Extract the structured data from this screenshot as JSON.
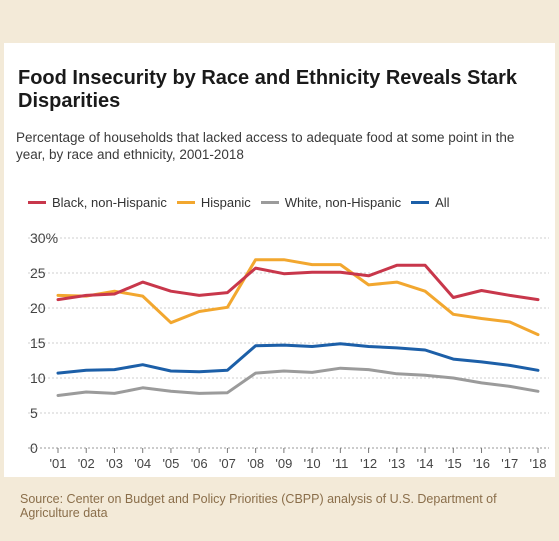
{
  "header": {
    "title": "Food Insecurity by Race and Ethnicity Reveals Stark Disparities",
    "subtitle": "Percentage of households that lacked access to adequate food at some point in the year, by race and ethnicity, 2001-2018"
  },
  "source_note": "Source: Center on Budget and Policy Priorities (CBPP) analysis of U.S. Department of Agriculture data",
  "chart_data": {
    "type": "line",
    "title": "Food Insecurity by Race and Ethnicity Reveals Stark Disparities",
    "subtitle": "Percentage of households that lacked access to adequate food at some point in the year, by race and ethnicity, 2001-2018",
    "x": [
      "'01",
      "'02",
      "'03",
      "'04",
      "'05",
      "'06",
      "'07",
      "'08",
      "'09",
      "'10",
      "'11",
      "'12",
      "'13",
      "'14",
      "'15",
      "'16",
      "'17",
      "'18"
    ],
    "ylim": [
      0,
      30
    ],
    "yticks": [
      "0",
      "5",
      "10",
      "15",
      "20",
      "25",
      "30%"
    ],
    "grid": true,
    "legend_position": "top",
    "series": [
      {
        "name": "Black, non-Hispanic",
        "color": "#c8374b",
        "values": [
          21.2,
          21.8,
          22.0,
          23.7,
          22.4,
          21.8,
          22.2,
          25.7,
          24.9,
          25.1,
          25.1,
          24.6,
          26.1,
          26.1,
          21.5,
          22.5,
          21.8,
          21.2
        ]
      },
      {
        "name": "Hispanic",
        "color": "#f2a72f",
        "values": [
          21.8,
          21.7,
          22.4,
          21.7,
          17.9,
          19.5,
          20.1,
          26.9,
          26.9,
          26.2,
          26.2,
          23.3,
          23.7,
          22.4,
          19.1,
          18.5,
          18.0,
          16.2
        ]
      },
      {
        "name": "White, non-Hispanic",
        "color": "#9b9b9b",
        "values": [
          7.5,
          8.0,
          7.8,
          8.6,
          8.1,
          7.8,
          7.9,
          10.7,
          11.0,
          10.8,
          11.4,
          11.2,
          10.6,
          10.4,
          10.0,
          9.3,
          8.8,
          8.1
        ]
      },
      {
        "name": "All",
        "color": "#1c5fa8",
        "values": [
          10.7,
          11.1,
          11.2,
          11.9,
          11.0,
          10.9,
          11.1,
          14.6,
          14.7,
          14.5,
          14.9,
          14.5,
          14.3,
          14.0,
          12.7,
          12.3,
          11.8,
          11.1
        ]
      }
    ]
  }
}
